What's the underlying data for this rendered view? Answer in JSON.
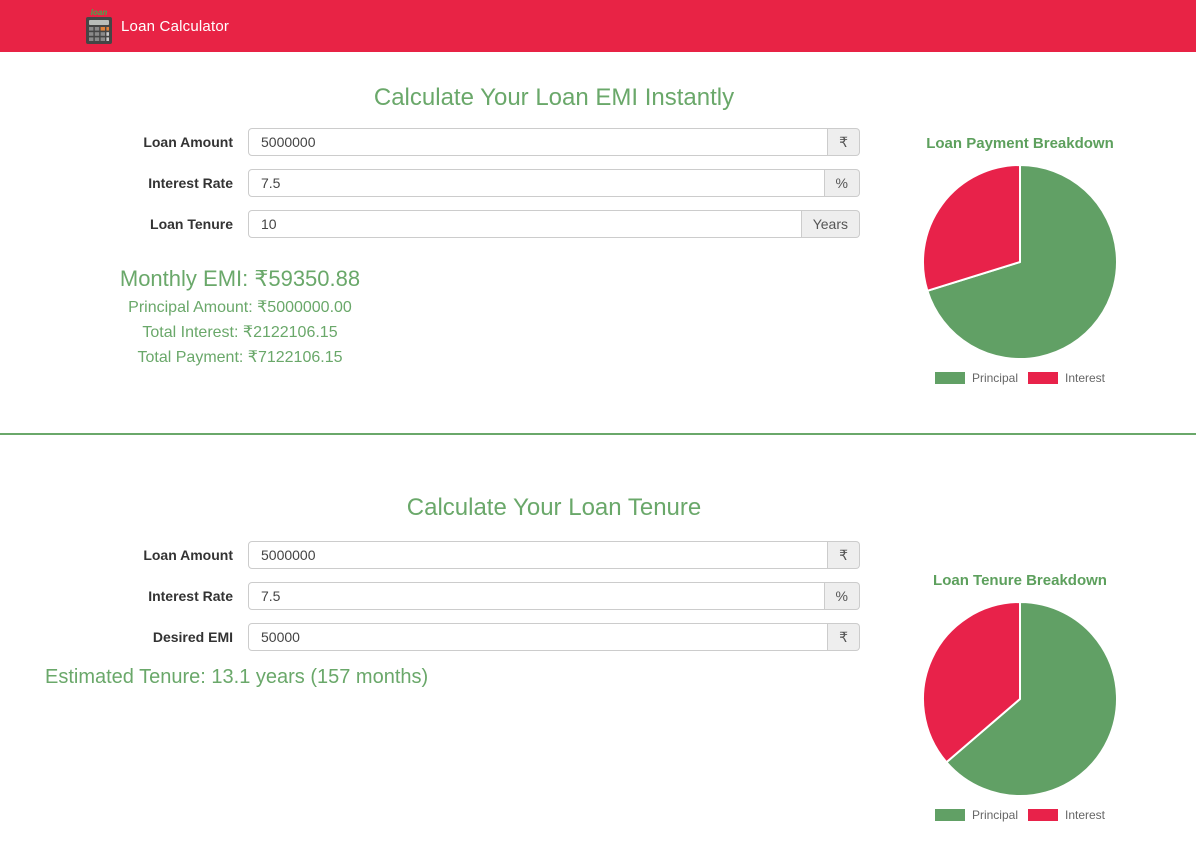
{
  "colors": {
    "header_red": "#e82345",
    "accent_green": "#6aa86a",
    "chart_title_green": "#5da05d",
    "pie_green": "#61a065",
    "pie_red": "#e8224a"
  },
  "header": {
    "title": "Loan Calculator",
    "icon": "calculator-icon"
  },
  "emi_section": {
    "heading": "Calculate Your Loan EMI Instantly",
    "fields": [
      {
        "label": "Loan Amount",
        "value": "5000000",
        "suffix": "₹"
      },
      {
        "label": "Interest Rate",
        "value": "7.5",
        "suffix": "%"
      },
      {
        "label": "Loan Tenure",
        "value": "10",
        "suffix": "Years"
      }
    ],
    "results": {
      "monthly_emi": "Monthly EMI: ₹59350.88",
      "principal": "Principal Amount: ₹5000000.00",
      "total_interest": "Total Interest: ₹2122106.15",
      "total_payment": "Total Payment: ₹7122106.15"
    }
  },
  "tenure_section": {
    "heading": "Calculate Your Loan Tenure",
    "fields": [
      {
        "label": "Loan Amount",
        "value": "5000000",
        "suffix": "₹"
      },
      {
        "label": "Interest Rate",
        "value": "7.5",
        "suffix": "%"
      },
      {
        "label": "Desired EMI",
        "value": "50000",
        "suffix": "₹"
      }
    ],
    "result": "Estimated Tenure: 13.1 years (157 months)"
  },
  "chart_data": [
    {
      "type": "pie",
      "title": "Loan Payment Breakdown",
      "labels": [
        "Principal",
        "Interest"
      ],
      "values": [
        5000000,
        2122106.15
      ],
      "colors": [
        "#61a065",
        "#e8224a"
      ],
      "legend_position": "bottom"
    },
    {
      "type": "pie",
      "title": "Loan Tenure Breakdown",
      "labels": [
        "Principal",
        "Interest"
      ],
      "values": [
        63.7,
        36.3
      ],
      "values_unit": "percent_estimated_from_pixels",
      "colors": [
        "#61a065",
        "#e8224a"
      ],
      "legend_position": "bottom"
    }
  ]
}
